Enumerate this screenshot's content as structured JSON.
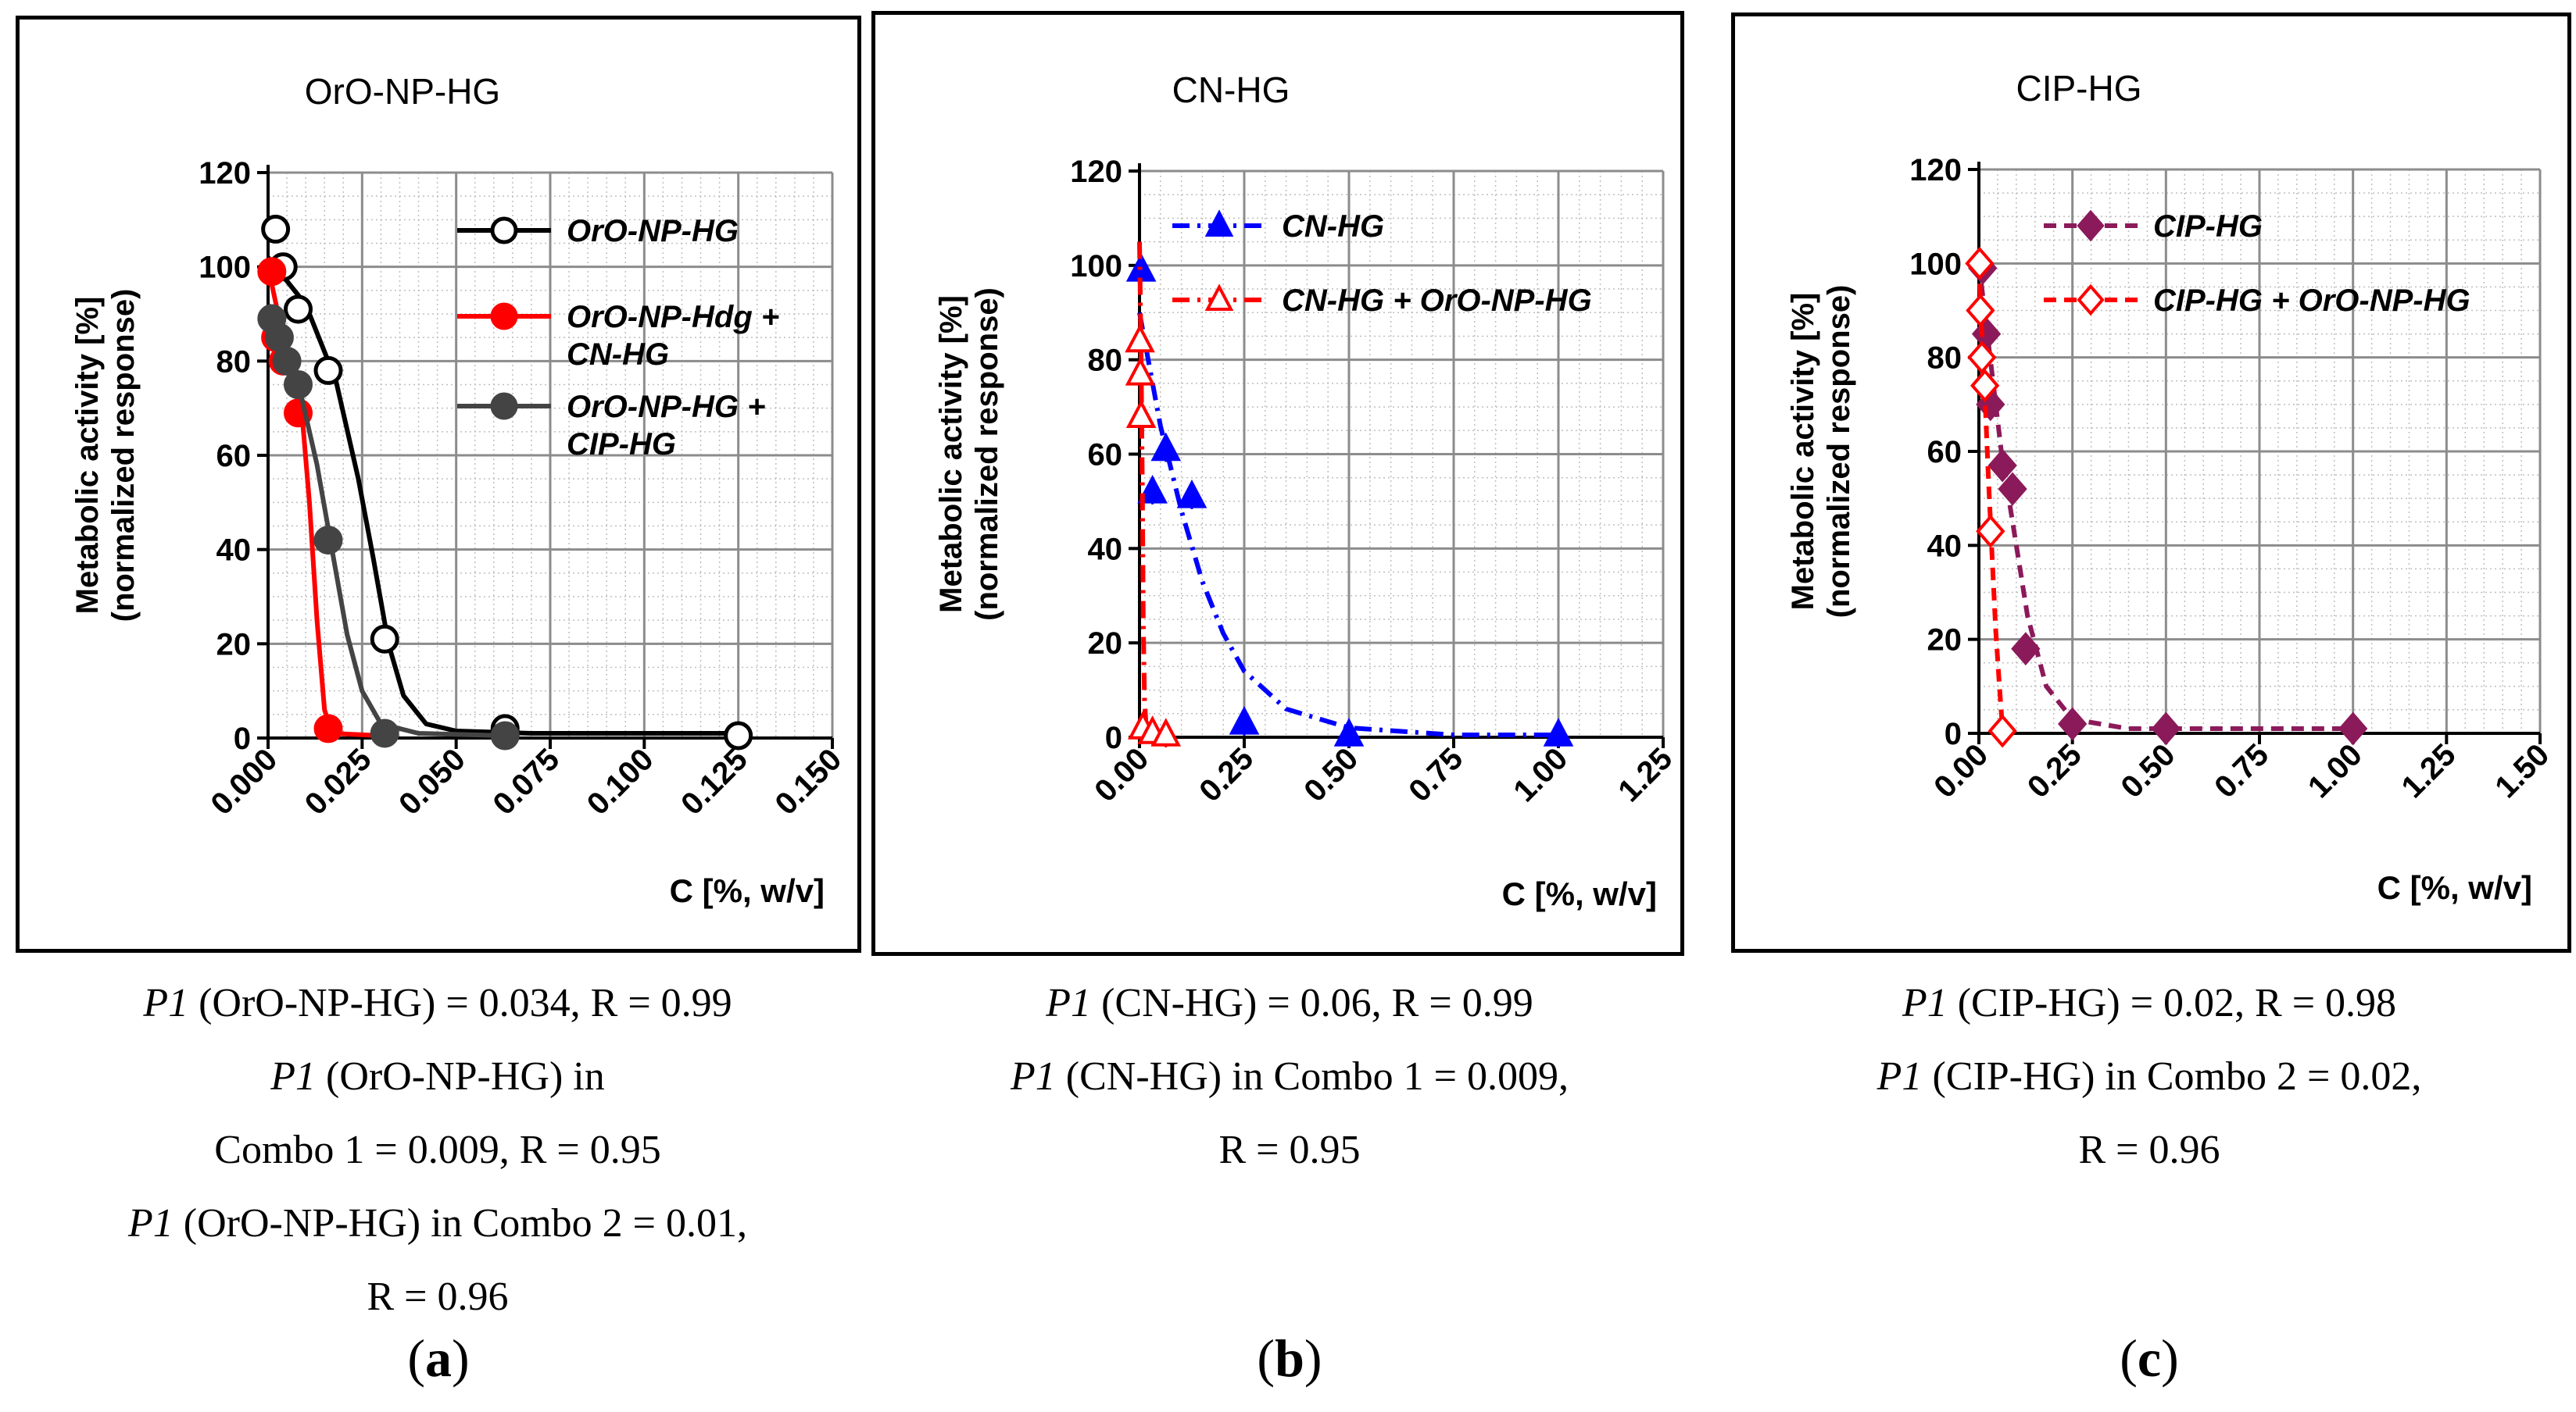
{
  "chart_data": [
    {
      "type": "scatter",
      "title": "OrO-NP-HG",
      "xlabel": "C [%, w/v]",
      "ylabel": [
        "Metabolic activity [%]",
        "(normalized response)"
      ],
      "xlim": [
        0,
        0.15
      ],
      "ylim": [
        0,
        120
      ],
      "xticks": [
        "0.000",
        "0.025",
        "0.050",
        "0.075",
        "0.100",
        "0.125",
        "0.150"
      ],
      "yticks": [
        "0",
        "20",
        "40",
        "60",
        "80",
        "100",
        "120"
      ],
      "legend_position": "top-right",
      "series": [
        {
          "name": "OrO-NP-HG",
          "color": "#000000",
          "marker": "circle-open",
          "line": "solid",
          "points": [
            [
              0.002,
              108
            ],
            [
              0.004,
              100
            ],
            [
              0.008,
              91
            ],
            [
              0.016,
              78
            ],
            [
              0.031,
              21
            ],
            [
              0.063,
              2
            ],
            [
              0.125,
              0.5
            ]
          ],
          "curve": [
            [
              0,
              102
            ],
            [
              0.01,
              92
            ],
            [
              0.018,
              76
            ],
            [
              0.024,
              55
            ],
            [
              0.028,
              38
            ],
            [
              0.032,
              20
            ],
            [
              0.036,
              9
            ],
            [
              0.042,
              3
            ],
            [
              0.05,
              1.5
            ],
            [
              0.07,
              1
            ],
            [
              0.125,
              1
            ]
          ]
        },
        {
          "name": "OrO-NP-Hdg + CN-HG",
          "color": "#ff0000",
          "marker": "circle-filled",
          "line": "solid",
          "points": [
            [
              0.001,
              99
            ],
            [
              0.002,
              85
            ],
            [
              0.004,
              80
            ],
            [
              0.008,
              69
            ],
            [
              0.016,
              2
            ]
          ],
          "curve": [
            [
              0,
              100
            ],
            [
              0.004,
              85
            ],
            [
              0.007,
              77
            ],
            [
              0.009,
              69
            ],
            [
              0.011,
              50
            ],
            [
              0.013,
              25
            ],
            [
              0.015,
              6
            ],
            [
              0.017,
              1
            ],
            [
              0.03,
              0.5
            ]
          ]
        },
        {
          "name": "OrO-NP-HG + CIP-HG",
          "color": "#444444",
          "marker": "circle-filled",
          "line": "solid",
          "points": [
            [
              0.001,
              89
            ],
            [
              0.003,
              85
            ],
            [
              0.005,
              80
            ],
            [
              0.008,
              75
            ],
            [
              0.016,
              42
            ],
            [
              0.031,
              1
            ],
            [
              0.063,
              0.5
            ]
          ],
          "curve": [
            [
              0,
              92
            ],
            [
              0.005,
              82
            ],
            [
              0.009,
              72
            ],
            [
              0.013,
              58
            ],
            [
              0.017,
              40
            ],
            [
              0.021,
              22
            ],
            [
              0.025,
              10
            ],
            [
              0.03,
              3
            ],
            [
              0.04,
              1
            ],
            [
              0.063,
              0.5
            ]
          ]
        }
      ]
    },
    {
      "type": "scatter",
      "title": "CN-HG",
      "xlabel": "C [%, w/v]",
      "ylabel": [
        "Metabolic activity [%]",
        "(normalized response)"
      ],
      "xlim": [
        0,
        1.25
      ],
      "ylim": [
        0,
        120
      ],
      "xticks": [
        "0.00",
        "0.25",
        "0.50",
        "0.75",
        "1.00",
        "1.25"
      ],
      "yticks": [
        "0",
        "20",
        "40",
        "60",
        "80",
        "100",
        "120"
      ],
      "legend_position": "top-right",
      "series": [
        {
          "name": "CN-HG",
          "color": "#0000ff",
          "marker": "triangle-filled",
          "line": "dash-dot",
          "points": [
            [
              0.004,
              99
            ],
            [
              0.031,
              52
            ],
            [
              0.063,
              61
            ],
            [
              0.125,
              51
            ],
            [
              0.25,
              3
            ],
            [
              0.5,
              0.5
            ],
            [
              1.0,
              0.5
            ]
          ],
          "curve": [
            [
              0,
              90
            ],
            [
              0.05,
              66
            ],
            [
              0.1,
              48
            ],
            [
              0.15,
              33
            ],
            [
              0.2,
              22
            ],
            [
              0.25,
              14
            ],
            [
              0.35,
              6
            ],
            [
              0.5,
              2
            ],
            [
              0.75,
              0.5
            ],
            [
              1.0,
              0.5
            ]
          ]
        },
        {
          "name": "CN-HG + OrO-NP-HG",
          "color": "#ff0000",
          "marker": "triangle-open",
          "line": "dash-dot",
          "points": [
            [
              0.001,
              84
            ],
            [
              0.002,
              77
            ],
            [
              0.004,
              68
            ],
            [
              0.008,
              2
            ],
            [
              0.031,
              1
            ],
            [
              0.063,
              0.5
            ]
          ],
          "curve": [
            [
              0,
              105
            ],
            [
              0.004,
              80
            ],
            [
              0.007,
              50
            ],
            [
              0.009,
              25
            ],
            [
              0.012,
              8
            ],
            [
              0.016,
              2
            ],
            [
              0.03,
              1
            ],
            [
              0.063,
              0.5
            ]
          ]
        }
      ]
    },
    {
      "type": "scatter",
      "title": "CIP-HG",
      "xlabel": "C [%, w/v]",
      "ylabel": [
        "Metabolic activity [%]",
        "(normalized response)"
      ],
      "xlim": [
        0,
        1.5
      ],
      "ylim": [
        0,
        120
      ],
      "xticks": [
        "0.00",
        "0.25",
        "0.50",
        "0.75",
        "1.00",
        "1.25",
        "1.50"
      ],
      "yticks": [
        "0",
        "20",
        "40",
        "60",
        "80",
        "100",
        "120"
      ],
      "legend_position": "top-right",
      "series": [
        {
          "name": "CIP-HG",
          "color": "#8b1a5a",
          "marker": "diamond-filled",
          "line": "dash",
          "points": [
            [
              0.01,
              99
            ],
            [
              0.02,
              85
            ],
            [
              0.031,
              70
            ],
            [
              0.063,
              57
            ],
            [
              0.09,
              52
            ],
            [
              0.125,
              18
            ],
            [
              0.25,
              2
            ],
            [
              0.5,
              1
            ],
            [
              1.0,
              1
            ]
          ],
          "curve": [
            [
              0,
              100
            ],
            [
              0.03,
              80
            ],
            [
              0.06,
              60
            ],
            [
              0.09,
              45
            ],
            [
              0.13,
              25
            ],
            [
              0.18,
              10
            ],
            [
              0.25,
              3
            ],
            [
              0.4,
              1
            ],
            [
              1.0,
              1
            ]
          ]
        },
        {
          "name": "CIP-HG + OrO-NP-HG",
          "color": "#ff0000",
          "marker": "diamond-open",
          "line": "dash",
          "points": [
            [
              0.002,
              100
            ],
            [
              0.004,
              90
            ],
            [
              0.008,
              80
            ],
            [
              0.016,
              74
            ],
            [
              0.031,
              43
            ],
            [
              0.063,
              0.5
            ]
          ],
          "curve": [
            [
              0,
              100
            ],
            [
              0.008,
              85
            ],
            [
              0.016,
              72
            ],
            [
              0.025,
              55
            ],
            [
              0.035,
              38
            ],
            [
              0.045,
              22
            ],
            [
              0.055,
              10
            ],
            [
              0.063,
              1
            ]
          ]
        }
      ]
    }
  ],
  "captions": [
    {
      "lines": [
        {
          "italic": "P1",
          "text": " (OrO-NP-HG) = 0.034, R = 0.99"
        },
        {
          "italic": "P1",
          "text": " (OrO-NP-HG) in"
        },
        {
          "italic": "",
          "text": "Combo 1 = 0.009, R = 0.95"
        },
        {
          "italic": "P1",
          "text": " (OrO-NP-HG) in Combo 2 = 0.01,"
        },
        {
          "italic": "",
          "text": "R = 0.96"
        }
      ],
      "label_open": "(",
      "label": "a",
      "label_close": ")"
    },
    {
      "lines": [
        {
          "italic": "P1",
          "text": " (CN-HG) = 0.06, R = 0.99"
        },
        {
          "italic": "P1",
          "text": " (CN-HG) in Combo 1 = 0.009,"
        },
        {
          "italic": "",
          "text": "R = 0.95"
        }
      ],
      "label_open": "(",
      "label": "b",
      "label_close": ")"
    },
    {
      "lines": [
        {
          "italic": "P1",
          "text": " (CIP-HG) = 0.02, R = 0.98"
        },
        {
          "italic": "P1",
          "text": " (CIP-HG) in Combo 2 = 0.02,"
        },
        {
          "italic": "",
          "text": "R = 0.96"
        }
      ],
      "label_open": "(",
      "label": "c",
      "label_close": ")"
    }
  ]
}
